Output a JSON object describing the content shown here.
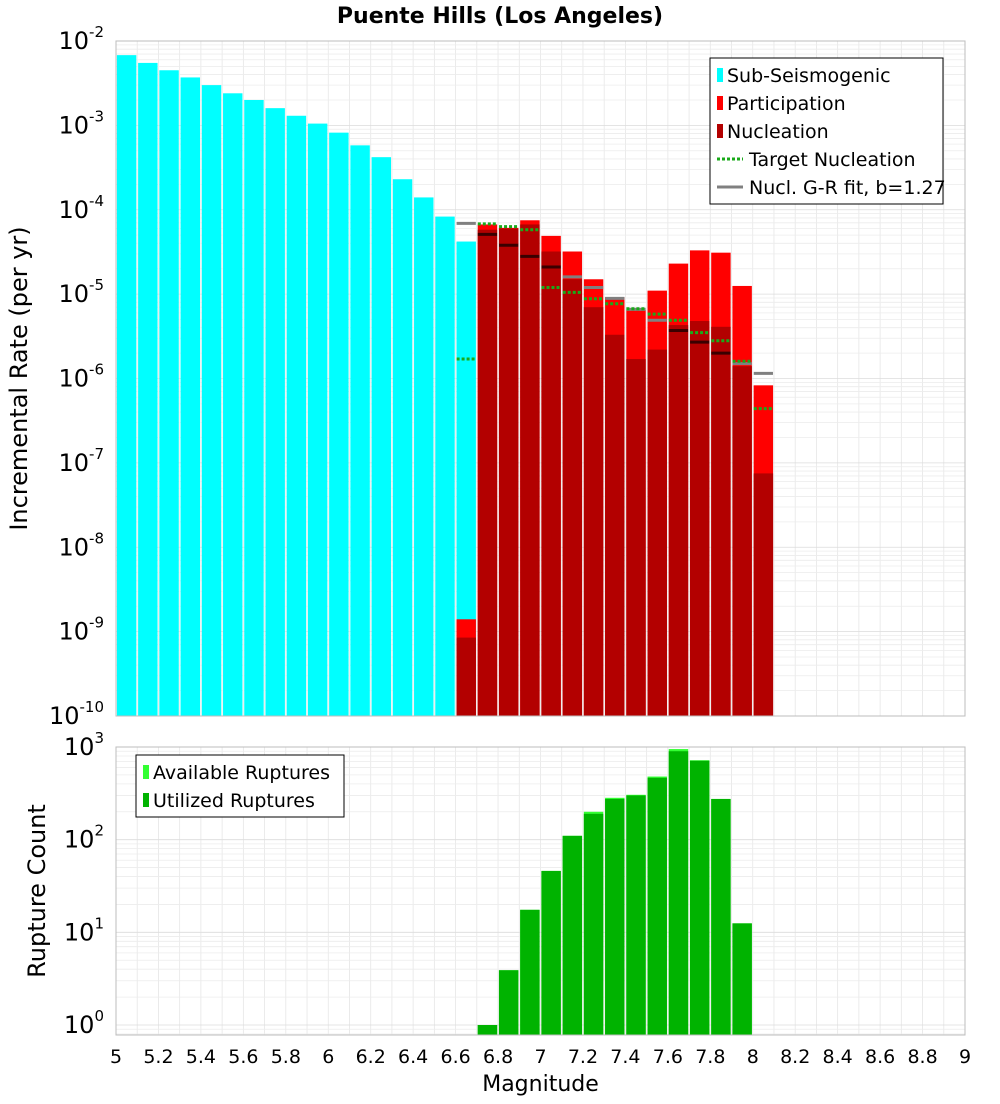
{
  "title": "Puente Hills (Los Angeles)",
  "colors": {
    "sub_seismogenic": "#00ffff",
    "participation": "#ff0000",
    "nucleation": "#b30000",
    "target_nucleation": "#1aaa1a",
    "gr_fit": "#808080",
    "available_ruptures": "#33ff33",
    "utilized_ruptures": "#00b300"
  },
  "chart_data": [
    {
      "type": "bar",
      "panel": "top",
      "title": "Puente Hills (Los Angeles)",
      "xlabel": "",
      "ylabel": "Incremental Rate (per yr)",
      "yscale": "log",
      "ylim": [
        1e-10,
        0.01
      ],
      "xlim": [
        5,
        9
      ],
      "bin_width": 0.1,
      "grid": true,
      "legend_position": "top-right",
      "y_ticks": [
        {
          "base": "10",
          "exp": "-2"
        },
        {
          "base": "10",
          "exp": "-3"
        },
        {
          "base": "10",
          "exp": "-4"
        },
        {
          "base": "10",
          "exp": "-5"
        },
        {
          "base": "10",
          "exp": "-6"
        },
        {
          "base": "10",
          "exp": "-7"
        },
        {
          "base": "10",
          "exp": "-8"
        },
        {
          "base": "10",
          "exp": "-9"
        },
        {
          "base": "10",
          "exp": "-10"
        }
      ],
      "legend": [
        {
          "label": "Sub-Seismogenic",
          "kind": "bar",
          "color": "#00ffff"
        },
        {
          "label": "Participation",
          "kind": "bar",
          "color": "#ff0000"
        },
        {
          "label": "Nucleation",
          "kind": "bar",
          "color": "#b30000"
        },
        {
          "label": "Target Nucleation",
          "kind": "dotted-line",
          "color": "#1aaa1a"
        },
        {
          "label": "Nucl. G-R fit, b=1.27",
          "kind": "line",
          "color": "#808080"
        }
      ],
      "series": [
        {
          "name": "Sub-Seismogenic",
          "x": [
            5.05,
            5.15,
            5.25,
            5.35,
            5.45,
            5.55,
            5.65,
            5.75,
            5.85,
            5.95,
            6.05,
            6.15,
            6.25,
            6.35,
            6.45,
            6.55,
            6.65
          ],
          "values": [
            0.0068,
            0.0055,
            0.0045,
            0.0037,
            0.003,
            0.0024,
            0.002,
            0.0016,
            0.0013,
            0.00105,
            0.00082,
            0.00058,
            0.00042,
            0.00023,
            0.00014,
            8.3e-05,
            4.2e-05
          ]
        },
        {
          "name": "Participation",
          "x": [
            6.65,
            6.75,
            6.85,
            6.95,
            7.05,
            7.15,
            7.25,
            7.35,
            7.45,
            7.55,
            7.65,
            7.75,
            7.85,
            7.95,
            8.05
          ],
          "values": [
            1.4e-09,
            6.7e-05,
            6.1e-05,
            7.5e-05,
            4.9e-05,
            3.2e-05,
            1.5e-05,
            9.2e-06,
            6.5e-06,
            1.1e-05,
            2.3e-05,
            3.3e-05,
            3.1e-05,
            1.25e-05,
            8.3e-07
          ]
        },
        {
          "name": "Nucleation",
          "x": [
            6.65,
            6.75,
            6.85,
            6.95,
            7.05,
            7.15,
            7.25,
            7.35,
            7.45,
            7.55,
            7.65,
            7.75,
            7.85,
            7.95,
            8.05
          ],
          "values": [
            8.5e-10,
            5.8e-05,
            6e-05,
            6.7e-05,
            3.2e-05,
            1.5e-05,
            7e-06,
            3.3e-06,
            1.7e-06,
            2.2e-06,
            4.3e-06,
            4.8e-06,
            4.1e-06,
            1.4e-06,
            7.5e-08
          ]
        },
        {
          "name": "Target Nucleation",
          "x": [
            6.65,
            6.75,
            6.85,
            6.95,
            7.05,
            7.15,
            7.25,
            7.35,
            7.45,
            7.55,
            7.65,
            7.75,
            7.85,
            7.95,
            8.05
          ],
          "values": [
            1.7e-06,
            6.8e-05,
            6.3e-05,
            5.8e-05,
            1.2e-05,
            1.05e-05,
            8.8e-06,
            7.7e-06,
            6.7e-06,
            5.8e-06,
            4.9e-06,
            3.5e-06,
            2.8e-06,
            1.6e-06,
            4.4e-07
          ]
        },
        {
          "name": "Nucl. G-R fit, b=1.27",
          "x": [
            6.65,
            6.75,
            6.85,
            6.95,
            7.05,
            7.15,
            7.25,
            7.35,
            7.45,
            7.55,
            7.65,
            7.75,
            7.85,
            7.95,
            8.05
          ],
          "values": [
            6.9e-05,
            5.1e-05,
            3.8e-05,
            2.8e-05,
            2.1e-05,
            1.6e-05,
            1.2e-05,
            8.9e-06,
            6.6e-06,
            4.9e-06,
            3.7e-06,
            2.7e-06,
            2e-06,
            1.5e-06,
            1.15e-06
          ]
        }
      ]
    },
    {
      "type": "bar",
      "panel": "bottom",
      "xlabel": "Magnitude",
      "ylabel": "Rupture Count",
      "yscale": "log",
      "ylim": [
        0.78,
        1000
      ],
      "xlim": [
        5,
        9
      ],
      "bin_width": 0.1,
      "grid": true,
      "legend_position": "top-left",
      "x_ticks": [
        "5",
        "5.2",
        "5.4",
        "5.6",
        "5.8",
        "6",
        "6.2",
        "6.4",
        "6.6",
        "6.8",
        "7",
        "7.2",
        "7.4",
        "7.6",
        "7.8",
        "8",
        "8.2",
        "8.4",
        "8.6",
        "8.8",
        "9"
      ],
      "y_ticks": [
        {
          "base": "10",
          "exp": "3"
        },
        {
          "base": "10",
          "exp": "2"
        },
        {
          "base": "10",
          "exp": "1"
        },
        {
          "base": "10",
          "exp": "0"
        }
      ],
      "legend": [
        {
          "label": "Available Ruptures",
          "kind": "bar",
          "color": "#33ff33"
        },
        {
          "label": "Utilized Ruptures",
          "kind": "bar",
          "color": "#00b300"
        }
      ],
      "series": [
        {
          "name": "Available Ruptures",
          "x": [
            6.75,
            6.85,
            6.95,
            7.05,
            7.15,
            7.25,
            7.35,
            7.45,
            7.55,
            7.65,
            7.75,
            7.85,
            7.95
          ],
          "values": [
            1,
            3.9,
            17.5,
            46,
            110,
            200,
            283,
            305,
            480,
            950,
            720,
            275,
            12.5
          ]
        },
        {
          "name": "Utilized Ruptures",
          "x": [
            6.75,
            6.85,
            6.95,
            7.05,
            7.15,
            7.25,
            7.35,
            7.45,
            7.55,
            7.65,
            7.75,
            7.85,
            7.95
          ],
          "values": [
            1,
            3.9,
            17.5,
            46,
            110,
            190,
            275,
            300,
            465,
            900,
            710,
            275,
            12.5
          ]
        }
      ]
    }
  ]
}
